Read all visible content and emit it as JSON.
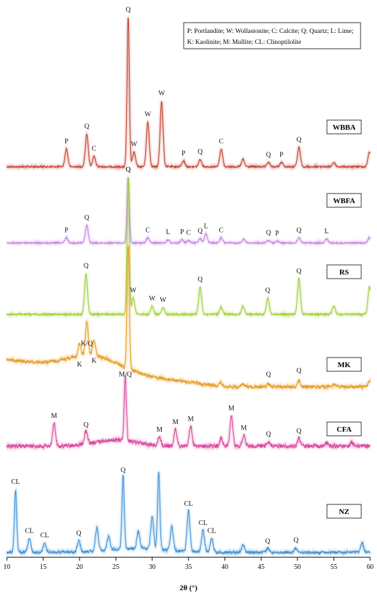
{
  "chart_data": {
    "type": "line",
    "xlabel": "2θ (°)",
    "xlim": [
      10,
      60
    ],
    "xticks": [
      10,
      15,
      20,
      25,
      30,
      35,
      40,
      45,
      50,
      55,
      60
    ],
    "grid": false,
    "legend": {
      "placement": "top-right",
      "lines": [
        "P: Portlandite; W: Wollastonite; C: Calcite; Q: Quartz; L: Lime;",
        "K: Kaolinite; M: Mullite; CL: Clinoptilolite"
      ]
    },
    "series": [
      {
        "name": "WBBA",
        "color": "#c0392b",
        "peaks": [
          {
            "x": 18.2,
            "h": 0.12,
            "label": "P"
          },
          {
            "x": 21.0,
            "h": 0.22,
            "label": "Q"
          },
          {
            "x": 22.0,
            "h": 0.07,
            "label": "C"
          },
          {
            "x": 26.7,
            "h": 1.0,
            "label": "Q"
          },
          {
            "x": 27.5,
            "h": 0.1,
            "label": "W"
          },
          {
            "x": 29.4,
            "h": 0.3,
            "label": "W"
          },
          {
            "x": 31.3,
            "h": 0.44,
            "label": "W"
          },
          {
            "x": 34.3,
            "h": 0.04,
            "label": "P"
          },
          {
            "x": 36.6,
            "h": 0.05,
            "label": "Q"
          },
          {
            "x": 39.5,
            "h": 0.12,
            "label": "C"
          },
          {
            "x": 42.5,
            "h": 0.05,
            "label": ""
          },
          {
            "x": 46.0,
            "h": 0.03,
            "label": "Q"
          },
          {
            "x": 47.8,
            "h": 0.03,
            "label": "P"
          },
          {
            "x": 50.2,
            "h": 0.13,
            "label": "Q"
          },
          {
            "x": 55.0,
            "h": 0.03,
            "label": ""
          },
          {
            "x": 59.9,
            "h": 0.1,
            "label": ""
          }
        ],
        "label_pos": "top"
      },
      {
        "name": "WBFA",
        "color": "#c27fe0",
        "peaks": [
          {
            "x": 18.2,
            "h": 0.08,
            "label": "P"
          },
          {
            "x": 21.0,
            "h": 0.27,
            "label": "Q"
          },
          {
            "x": 26.7,
            "h": 1.0,
            "label": "Q"
          },
          {
            "x": 29.4,
            "h": 0.08,
            "label": "C"
          },
          {
            "x": 32.2,
            "h": 0.05,
            "label": "L"
          },
          {
            "x": 34.1,
            "h": 0.05,
            "label": "P"
          },
          {
            "x": 35.0,
            "h": 0.04,
            "label": "C"
          },
          {
            "x": 36.6,
            "h": 0.07,
            "label": "Q"
          },
          {
            "x": 37.4,
            "h": 0.14,
            "label": "L"
          },
          {
            "x": 39.5,
            "h": 0.08,
            "label": "C"
          },
          {
            "x": 42.6,
            "h": 0.06,
            "label": ""
          },
          {
            "x": 46.0,
            "h": 0.04,
            "label": "Q"
          },
          {
            "x": 47.2,
            "h": 0.03,
            "label": "P"
          },
          {
            "x": 50.2,
            "h": 0.08,
            "label": "Q"
          },
          {
            "x": 54.0,
            "h": 0.06,
            "label": "L"
          },
          {
            "x": 59.9,
            "h": 0.08,
            "label": ""
          }
        ],
        "label_pos": "top"
      },
      {
        "name": "RS",
        "color": "#9acd32",
        "peaks": [
          {
            "x": 20.9,
            "h": 0.3,
            "label": "Q"
          },
          {
            "x": 26.7,
            "h": 1.0,
            "label": "Q"
          },
          {
            "x": 27.4,
            "h": 0.12,
            "label": "W"
          },
          {
            "x": 30.0,
            "h": 0.06,
            "label": "W"
          },
          {
            "x": 31.5,
            "h": 0.05,
            "label": "W"
          },
          {
            "x": 36.6,
            "h": 0.2,
            "label": "Q"
          },
          {
            "x": 39.5,
            "h": 0.05,
            "label": ""
          },
          {
            "x": 42.5,
            "h": 0.06,
            "label": ""
          },
          {
            "x": 45.9,
            "h": 0.12,
            "label": "Q"
          },
          {
            "x": 50.2,
            "h": 0.26,
            "label": "Q"
          },
          {
            "x": 55.0,
            "h": 0.06,
            "label": ""
          },
          {
            "x": 59.9,
            "h": 0.2,
            "label": ""
          }
        ],
        "label_pos": "top"
      },
      {
        "name": "MK",
        "color": "#e69b1e",
        "peaks": [
          {
            "x": 20.0,
            "h": 0.1,
            "label": "K"
          },
          {
            "x": 21.0,
            "h": 0.27,
            "label": "K/Q"
          },
          {
            "x": 22.0,
            "h": 0.13,
            "label": "K"
          },
          {
            "x": 26.7,
            "h": 1.0,
            "label": ""
          },
          {
            "x": 39.5,
            "h": 0.03,
            "label": ""
          },
          {
            "x": 42.5,
            "h": 0.02,
            "label": ""
          },
          {
            "x": 46.0,
            "h": 0.02,
            "label": "Q"
          },
          {
            "x": 50.2,
            "h": 0.05,
            "label": "Q"
          },
          {
            "x": 55.0,
            "h": 0.02,
            "label": ""
          },
          {
            "x": 59.9,
            "h": 0.04,
            "label": ""
          }
        ],
        "label_pos": "top"
      },
      {
        "name": "CFA",
        "color": "#d9469c",
        "peaks": [
          {
            "x": 16.5,
            "h": 0.3,
            "label": "M"
          },
          {
            "x": 20.9,
            "h": 0.18,
            "label": "Q"
          },
          {
            "x": 26.3,
            "h": 0.85,
            "label": "M/Q"
          },
          {
            "x": 31.0,
            "h": 0.12,
            "label": "M"
          },
          {
            "x": 33.2,
            "h": 0.22,
            "label": "M"
          },
          {
            "x": 35.3,
            "h": 0.26,
            "label": "M"
          },
          {
            "x": 39.5,
            "h": 0.1,
            "label": ""
          },
          {
            "x": 40.9,
            "h": 0.4,
            "label": "M"
          },
          {
            "x": 42.6,
            "h": 0.14,
            "label": "M"
          },
          {
            "x": 46.0,
            "h": 0.06,
            "label": "Q"
          },
          {
            "x": 50.2,
            "h": 0.1,
            "label": "Q"
          },
          {
            "x": 54.0,
            "h": 0.05,
            "label": ""
          },
          {
            "x": 57.5,
            "h": 0.05,
            "label": ""
          }
        ],
        "label_pos": "top"
      },
      {
        "name": "NZ",
        "color": "#3a8fd6",
        "peaks": [
          {
            "x": 11.2,
            "h": 0.8,
            "label": "CL"
          },
          {
            "x": 13.1,
            "h": 0.18,
            "label": "CL"
          },
          {
            "x": 15.2,
            "h": 0.12,
            "label": "CL"
          },
          {
            "x": 19.9,
            "h": 0.15,
            "label": "Q"
          },
          {
            "x": 22.4,
            "h": 0.3,
            "label": ""
          },
          {
            "x": 24.0,
            "h": 0.18,
            "label": ""
          },
          {
            "x": 26.0,
            "h": 0.95,
            "label": "Q"
          },
          {
            "x": 28.1,
            "h": 0.22,
            "label": ""
          },
          {
            "x": 30.0,
            "h": 0.42,
            "label": ""
          },
          {
            "x": 30.9,
            "h": 1.0,
            "label": ""
          },
          {
            "x": 32.7,
            "h": 0.3,
            "label": ""
          },
          {
            "x": 35.0,
            "h": 0.52,
            "label": "CL"
          },
          {
            "x": 37.0,
            "h": 0.28,
            "label": "CL"
          },
          {
            "x": 38.2,
            "h": 0.18,
            "label": "CL"
          },
          {
            "x": 42.5,
            "h": 0.1,
            "label": ""
          },
          {
            "x": 45.9,
            "h": 0.05,
            "label": "Q"
          },
          {
            "x": 49.8,
            "h": 0.06,
            "label": "Q"
          },
          {
            "x": 58.9,
            "h": 0.12,
            "label": ""
          }
        ],
        "label_pos": "top"
      }
    ]
  }
}
